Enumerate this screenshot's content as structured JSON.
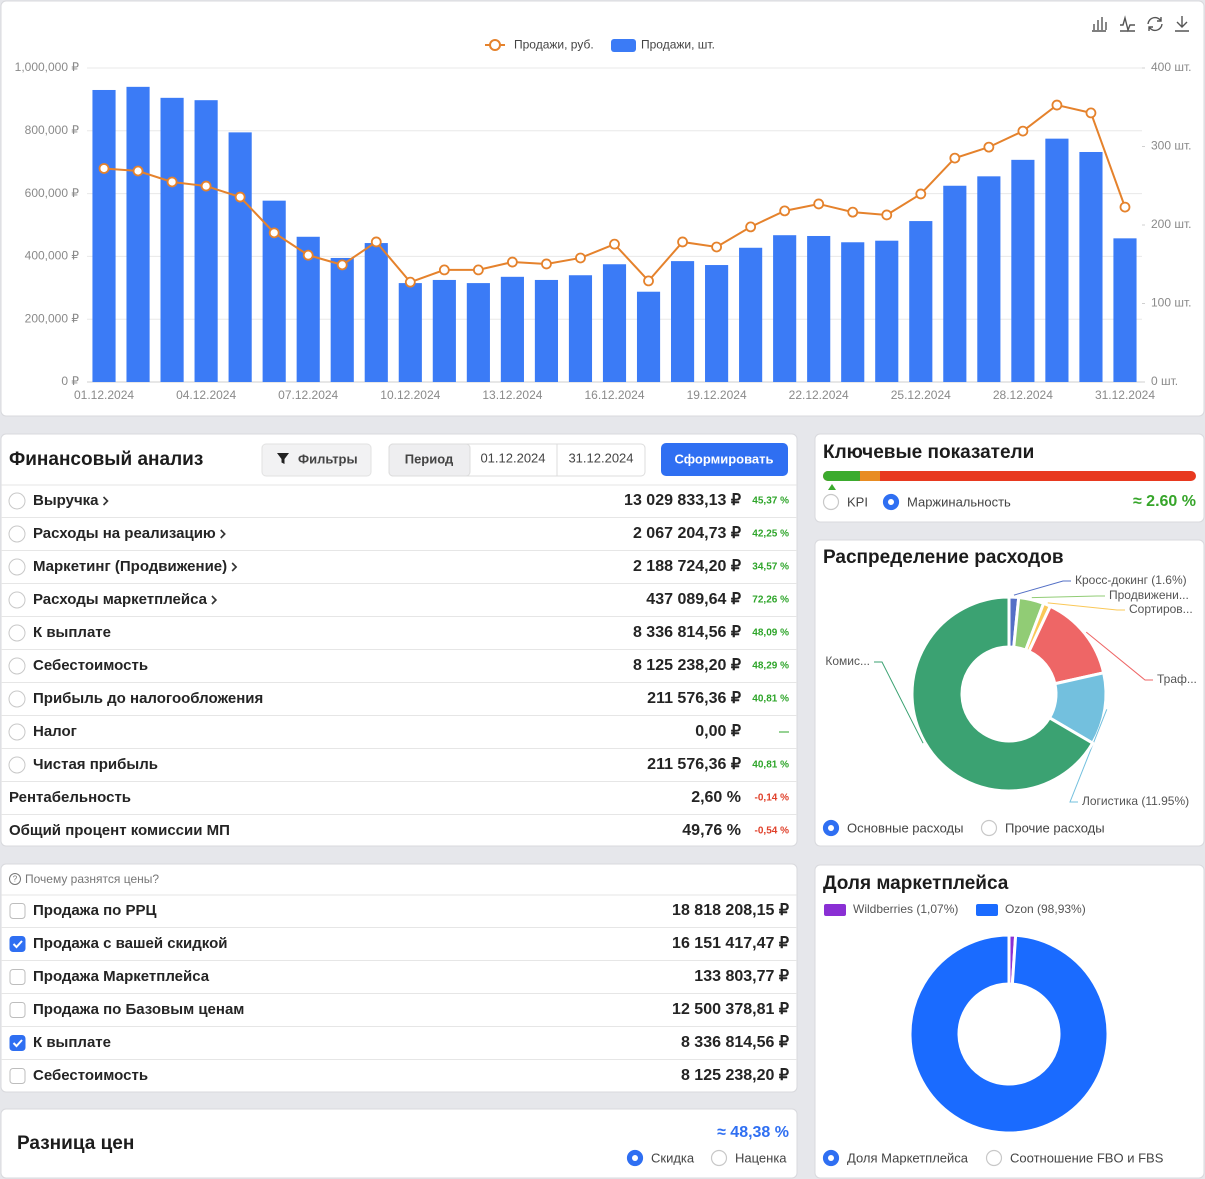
{
  "chart_data": [
    {
      "type": "combo",
      "categories": [
        "01.12.2024",
        null,
        null,
        "04.12.2024",
        null,
        null,
        "07.12.2024",
        null,
        null,
        "10.12.2024",
        null,
        null,
        "13.12.2024",
        null,
        null,
        "16.12.2024",
        null,
        null,
        "19.12.2024",
        null,
        null,
        "22.12.2024",
        null,
        null,
        "25.12.2024",
        null,
        null,
        "28.12.2024",
        null,
        null,
        "31.12.2024"
      ],
      "series": [
        {
          "name": "Продажи, руб.",
          "type": "line",
          "color": "#e5822c",
          "values": [
            680000,
            672000,
            637000,
            624000,
            589000,
            475000,
            404000,
            373000,
            446000,
            318000,
            357000,
            357000,
            382000,
            376000,
            395000,
            439000,
            322000,
            446000,
            430000,
            494000,
            545000,
            567000,
            541000,
            532000,
            599000,
            713000,
            748000,
            799000,
            882000,
            857000,
            557000
          ]
        },
        {
          "name": "Продажи, шт.",
          "type": "bar",
          "axis": "y2",
          "color": "#3b7bf6",
          "values": [
            372,
            376,
            362,
            359,
            318,
            231,
            185,
            158,
            177,
            126,
            130,
            126,
            134,
            130,
            136,
            150,
            115,
            154,
            149,
            171,
            187,
            186,
            178,
            180,
            205,
            250,
            262,
            283,
            310,
            293,
            183
          ]
        }
      ],
      "ylim": [
        0,
        1000000
      ],
      "yticks": [
        {
          "value": 0,
          "label": "0 ₽"
        },
        {
          "value": 200000,
          "label": "200,000 ₽"
        },
        {
          "value": 400000,
          "label": "400,000 ₽"
        },
        {
          "value": 600000,
          "label": "600,000 ₽"
        },
        {
          "value": 800000,
          "label": "800,000 ₽"
        },
        {
          "value": 1000000,
          "label": "1,000,000 ₽"
        }
      ],
      "y2lim": [
        0,
        400
      ],
      "y2ticks": [
        {
          "value": 0,
          "label": "0 шт."
        },
        {
          "value": 100,
          "label": "100 шт."
        },
        {
          "value": 200,
          "label": "200 шт."
        },
        {
          "value": 300,
          "label": "300 шт."
        },
        {
          "value": 400,
          "label": "400 шт."
        }
      ],
      "grid": true,
      "legend": "top"
    },
    {
      "type": "pie",
      "title": "Распределение расходов",
      "labels": "outside",
      "categories": [
        "Кросс-докинг (1.6%)",
        "Продвижени...",
        "Сортиров...",
        "Траф...",
        "Логистика (11.95%)",
        "Комис..."
      ],
      "values": [
        1.6,
        4.2,
        1.2,
        14.5,
        11.95,
        66.55
      ],
      "colors": [
        "#5470c6",
        "#91cc75",
        "#fac858",
        "#ee6666",
        "#73c0de",
        "#3ba272"
      ],
      "options": [
        "Основные расходы",
        "Прочие расходы"
      ],
      "selected": 0
    },
    {
      "type": "pie",
      "title": "Доля маркетплейса",
      "legend": "top",
      "categories": [
        "Wildberries (1,07%)",
        "Ozon (98,93%)"
      ],
      "values": [
        1.07,
        98.93
      ],
      "colors": [
        "#8a2fd4",
        "#1a6bff"
      ],
      "options": [
        "Доля Маркетплейса",
        "Соотношение FBO и FBS"
      ],
      "selected": 0
    }
  ],
  "finance": {
    "title": "Финансовый анализ",
    "filters": "Фильтры",
    "period": "Период",
    "date_from": "01.12.2024",
    "date_to": "31.12.2024",
    "submit": "Сформировать",
    "rows": [
      {
        "label": "Выручка",
        "value": "13 029 833,13 ₽",
        "change": "45,37 %",
        "change_color": "#2ea52a",
        "radio": true,
        "expandable": true
      },
      {
        "label": "Расходы на реализацию",
        "value": "2 067 204,73 ₽",
        "change": "42,25 %",
        "change_color": "#2ea52a",
        "radio": true,
        "expandable": true
      },
      {
        "label": "Маркетинг (Продвижение)",
        "value": "2 188 724,20 ₽",
        "change": "34,57 %",
        "change_color": "#2ea52a",
        "radio": true,
        "expandable": true
      },
      {
        "label": "Расходы маркетплейса",
        "value": "437 089,64 ₽",
        "change": "72,26 %",
        "change_color": "#2ea52a",
        "radio": true,
        "expandable": true
      },
      {
        "label": "К выплате",
        "value": "8 336 814,56 ₽",
        "change": "48,09 %",
        "change_color": "#2ea52a",
        "radio": true,
        "expandable": false
      },
      {
        "label": "Себестоимость",
        "value": "8 125 238,20 ₽",
        "change": "48,29 %",
        "change_color": "#2ea52a",
        "radio": true,
        "expandable": false
      },
      {
        "label": "Прибыль до налогообложения",
        "value": "211 576,36 ₽",
        "change": "40,81 %",
        "change_color": "#2ea52a",
        "radio": true,
        "expandable": false
      },
      {
        "label": "Налог",
        "value": "0,00 ₽",
        "change": "—",
        "change_color": "#2ea52a",
        "radio": true,
        "expandable": false
      },
      {
        "label": "Чистая прибыль",
        "value": "211 576,36 ₽",
        "change": "40,81 %",
        "change_color": "#2ea52a",
        "radio": true,
        "expandable": false
      },
      {
        "label": "Рентабельность",
        "value": "2,60 %",
        "change": "-0,14 %",
        "change_color": "#e0402a",
        "radio": false,
        "expandable": false
      },
      {
        "label": "Общий процент комиссии МП",
        "value": "49,76 %",
        "change": "-0,54 %",
        "change_color": "#e0402a",
        "radio": false,
        "expandable": false
      }
    ]
  },
  "key_indicators": {
    "title": "Ключевые показатели",
    "options": [
      "KPI",
      "Маржинальность"
    ],
    "selected": 1,
    "value": "≈ 2.60 %"
  },
  "prices": {
    "hint": "Почему разнятся цены?",
    "rows": [
      {
        "label": "Продажа по РРЦ",
        "value": "18 818 208,15 ₽",
        "checked": false
      },
      {
        "label": "Продажа с вашей скидкой",
        "value": "16 151 417,47 ₽",
        "checked": true
      },
      {
        "label": "Продажа Маркетплейса",
        "value": "133 803,77 ₽",
        "checked": false
      },
      {
        "label": "Продажа по Базовым ценам",
        "value": "12 500 378,81 ₽",
        "checked": false
      },
      {
        "label": "К выплате",
        "value": "8 336 814,56 ₽",
        "checked": true
      },
      {
        "label": "Себестоимость",
        "value": "8 125 238,20 ₽",
        "checked": false
      }
    ]
  },
  "price_diff": {
    "title": "Разница цен",
    "value": "≈ 48,38 %",
    "options": [
      "Скидка",
      "Наценка"
    ],
    "selected": 0
  }
}
